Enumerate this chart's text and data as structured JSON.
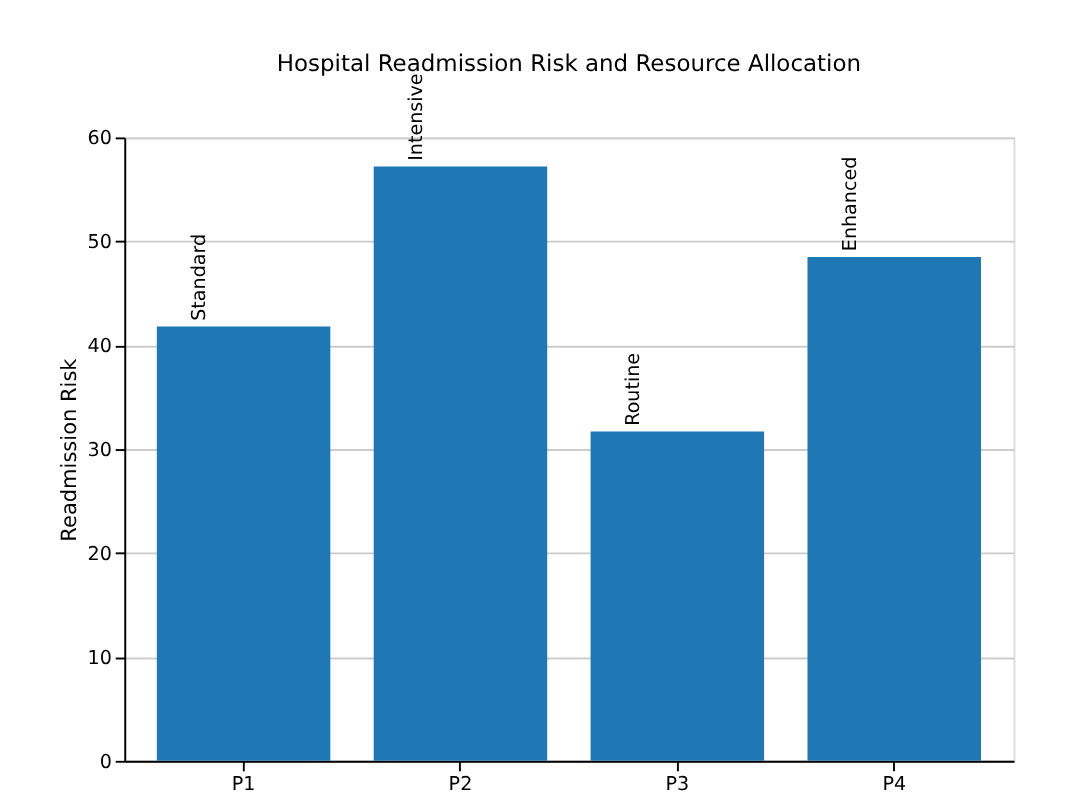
{
  "chart_data": {
    "type": "bar",
    "title": "Hospital Readmission Risk and Resource Allocation",
    "ylabel": "Readmission Risk",
    "categories": [
      "P1",
      "P2",
      "P3",
      "P4"
    ],
    "values": [
      41.8,
      57.2,
      31.7,
      48.5
    ],
    "color": "#1f77b4",
    "ylim": [
      0,
      60
    ],
    "yticks": [
      0,
      10,
      20,
      30,
      40,
      50,
      60
    ],
    "grid": "y",
    "annotations": [
      {
        "text": "Standard",
        "x": "P1",
        "y": 41.8
      },
      {
        "text": "Intensive",
        "x": "P2",
        "y": 57.2
      },
      {
        "text": "Routine",
        "x": "P3",
        "y": 31.7
      },
      {
        "text": "Enhanced",
        "x": "P4",
        "y": 48.5
      }
    ]
  }
}
